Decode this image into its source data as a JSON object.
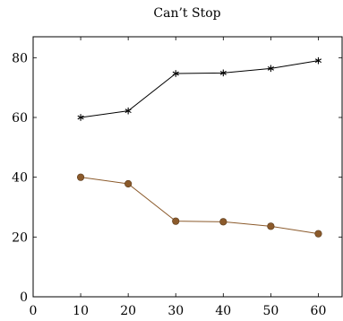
{
  "chart_data": {
    "type": "line",
    "title": "Can’t Stop",
    "xlabel": "",
    "ylabel": "",
    "xlim": [
      0,
      65
    ],
    "ylim": [
      0,
      87
    ],
    "x_ticks": [
      0,
      10,
      20,
      30,
      40,
      50,
      60
    ],
    "y_ticks": [
      0,
      20,
      40,
      60,
      80
    ],
    "grid": false,
    "x": [
      10,
      20,
      30,
      40,
      50,
      60
    ],
    "series": [
      {
        "values": [
          60,
          62.2,
          74.7,
          74.9,
          76.4,
          79
        ],
        "color": "#000000",
        "marker": "star"
      },
      {
        "values": [
          40,
          37.8,
          25.3,
          25.1,
          23.6,
          21.1
        ],
        "color": "#8b5a2b",
        "marker": "circle"
      }
    ]
  }
}
